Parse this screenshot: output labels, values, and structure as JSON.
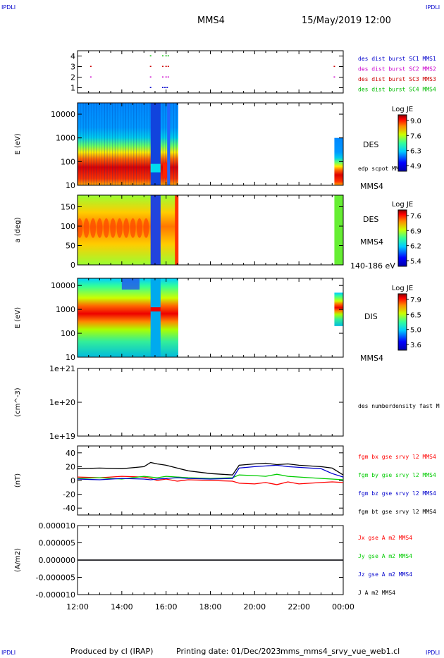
{
  "header": {
    "corner_label": "IPDLI",
    "spacecraft": "MMS4",
    "datetime": "15/May/2019 12:00"
  },
  "footer": {
    "produced_by": "Produced by cl (IRAP)",
    "printing_date": "Printing date: 01/Dec/2023",
    "filename": "mms_mms4_srvy_vue_web1.cl"
  },
  "time_axis": {
    "labels": [
      "12:00",
      "14:00",
      "16:00",
      "18:00",
      "20:00",
      "22:00",
      "00:00"
    ],
    "range_hours": [
      12,
      24
    ]
  },
  "chart_data": [
    {
      "id": "burst",
      "type": "scatter",
      "ylim": [
        0.5,
        4.5
      ],
      "yticks": [
        "1",
        "2",
        "3",
        "4"
      ],
      "series": [
        {
          "name": "des dist burst SC1 MMS1",
          "color": "#0000cc",
          "y": 1,
          "x": [
            15.3,
            15.85,
            15.95,
            16.05
          ]
        },
        {
          "name": "des dist burst SC2 MMS2",
          "color": "#cc00cc",
          "y": 2,
          "x": [
            12.6,
            15.3,
            15.85,
            16.0,
            16.1,
            23.6
          ]
        },
        {
          "name": "des dist burst SC3 MMS3",
          "color": "#cc0000",
          "y": 3,
          "x": [
            12.6,
            15.3,
            15.85,
            16.0,
            16.1,
            23.6
          ]
        },
        {
          "name": "des dist burst SC4 MMS4",
          "color": "#00bb00",
          "y": 4,
          "x": [
            15.3,
            15.85,
            16.0,
            16.1
          ]
        }
      ]
    },
    {
      "id": "des_energy",
      "type": "heatmap",
      "ylabel": "E (eV)",
      "yscale": "log",
      "ylim": [
        10,
        30000
      ],
      "yticks": [
        "10",
        "100",
        "1000",
        "10000"
      ],
      "right_labels": [
        "DES",
        "edp scpot MMS4",
        "MMS4"
      ],
      "colorbar": {
        "title": "Log JE",
        "ticks": [
          "9.0",
          "7.6",
          "6.3",
          "4.9"
        ]
      }
    },
    {
      "id": "des_pitch",
      "type": "heatmap",
      "ylabel": "a (deg)",
      "ylim": [
        0,
        180
      ],
      "yticks": [
        "0",
        "50",
        "100",
        "150"
      ],
      "right_labels": [
        "DES",
        "MMS4",
        "140-186 eV"
      ],
      "colorbar": {
        "title": "Log JE",
        "ticks": [
          "7.6",
          "6.9",
          "6.2",
          "5.4"
        ]
      }
    },
    {
      "id": "dis_energy",
      "type": "heatmap",
      "ylabel": "E (eV)",
      "yscale": "log",
      "ylim": [
        10,
        20000
      ],
      "yticks": [
        "10",
        "100",
        "1000",
        "10000"
      ],
      "right_labels": [
        "DIS",
        "MMS4"
      ],
      "colorbar": {
        "title": "Log JE",
        "ticks": [
          "7.9",
          "6.5",
          "5.0",
          "3.6"
        ]
      }
    },
    {
      "id": "density",
      "type": "line",
      "ylabel": "(cm^-3)",
      "yscale": "log",
      "ylim": [
        1e+19,
        1e+21
      ],
      "yticks": [
        "1e+19",
        "1e+20",
        "1e+21"
      ],
      "series": [
        {
          "name": "des numberdensity fast M",
          "color": "#000000",
          "x": [],
          "y": []
        }
      ]
    },
    {
      "id": "fgm",
      "type": "line",
      "ylabel": "(nT)",
      "ylim": [
        -50,
        50
      ],
      "yticks": [
        "-40",
        "-20",
        "0",
        "20",
        "40"
      ],
      "series": [
        {
          "name": "fgm bx gse srvy l2 MMS4",
          "color": "#ff0000",
          "x": [
            12,
            13,
            14,
            15,
            15.3,
            15.6,
            16,
            16.5,
            17,
            18,
            19,
            19.3,
            20,
            20.5,
            21,
            21.5,
            22,
            22.5,
            23,
            23.5,
            24
          ],
          "y": [
            5,
            4,
            6,
            5,
            3,
            0,
            2,
            -1,
            1,
            0,
            -1,
            -4,
            -5,
            -3,
            -6,
            -2,
            -5,
            -4,
            -3,
            -2,
            -3
          ]
        },
        {
          "name": "fgm by gse srvy l2 MMS4",
          "color": "#00cc00",
          "x": [
            12,
            13,
            14,
            15,
            15.3,
            15.6,
            16,
            16.5,
            17,
            18,
            19,
            19.3,
            20,
            20.5,
            21,
            21.5,
            22,
            22.5,
            23,
            23.5,
            24
          ],
          "y": [
            3,
            4,
            2,
            6,
            5,
            4,
            6,
            5,
            4,
            3,
            4,
            8,
            7,
            6,
            9,
            6,
            5,
            4,
            3,
            2,
            1
          ]
        },
        {
          "name": "fgm bz gse srvy l2 MMS4",
          "color": "#0000cc",
          "x": [
            12,
            13,
            14,
            15,
            15.3,
            15.6,
            16,
            16.5,
            17,
            18,
            19,
            19.3,
            20,
            20.5,
            21,
            21.5,
            22,
            22.5,
            23,
            23.5,
            24
          ],
          "y": [
            2,
            1,
            3,
            2,
            1,
            2,
            3,
            4,
            3,
            2,
            3,
            18,
            20,
            21,
            22,
            20,
            19,
            18,
            17,
            10,
            5
          ]
        },
        {
          "name": "fgm bt gse srvy l2 MMS4",
          "color": "#000000",
          "x": [
            12,
            13,
            14,
            15,
            15.3,
            15.6,
            16,
            16.5,
            17,
            18,
            19,
            19.3,
            20,
            20.5,
            21,
            21.5,
            22,
            22.5,
            23,
            23.5,
            24
          ],
          "y": [
            17,
            18,
            17,
            20,
            26,
            24,
            22,
            18,
            14,
            10,
            8,
            22,
            24,
            25,
            23,
            24,
            22,
            21,
            20,
            18,
            8
          ]
        }
      ]
    },
    {
      "id": "current",
      "type": "line",
      "ylabel": "(A/m2)",
      "ylim": [
        -1e-05,
        1e-05
      ],
      "yticks": [
        "-0.000010",
        "-0.000005",
        "0.000000",
        "0.000005",
        "0.000010"
      ],
      "series": [
        {
          "name": "Jx gse A m2 MMS4",
          "color": "#ff0000",
          "x": [
            12,
            24
          ],
          "y": [
            0,
            0
          ]
        },
        {
          "name": "Jy gse A m2 MMS4",
          "color": "#00cc00",
          "x": [
            12,
            24
          ],
          "y": [
            0,
            0
          ]
        },
        {
          "name": "Jz gse A m2 MMS4",
          "color": "#0000cc",
          "x": [
            12,
            24
          ],
          "y": [
            0,
            0
          ]
        },
        {
          "name": "J A m2 MMS4",
          "color": "#000000",
          "x": [
            12,
            24
          ],
          "y": [
            0,
            0
          ]
        }
      ]
    }
  ]
}
